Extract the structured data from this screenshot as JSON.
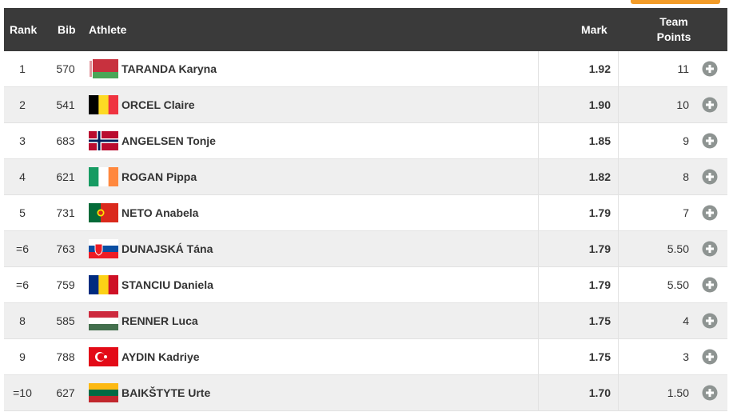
{
  "table": {
    "header": [
      "Rank",
      "Bib",
      "Athlete",
      "Mark",
      "Team Points"
    ],
    "rows": [
      [
        "1",
        "570",
        "TARANDA Karyna",
        "1.92",
        "11"
      ],
      [
        "2",
        "541",
        "ORCEL Claire",
        "1.90",
        "10"
      ],
      [
        "3",
        "683",
        "ANGELSEN Tonje",
        "1.85",
        "9"
      ],
      [
        "4",
        "621",
        "ROGAN Pippa",
        "1.82",
        "8"
      ],
      [
        "5",
        "731",
        "NETO Anabela",
        "1.79",
        "7"
      ],
      [
        "=6",
        "763",
        "DUNAJSKÁ Tána",
        "1.79",
        "5.50"
      ],
      [
        "=6",
        "759",
        "STANCIU Daniela",
        "1.79",
        "5.50"
      ],
      [
        "8",
        "585",
        "RENNER Luca",
        "1.75",
        "4"
      ],
      [
        "9",
        "788",
        "AYDIN Kadriye",
        "1.75",
        "3"
      ],
      [
        "=10",
        "627",
        "BAIKŠTYTE Urte",
        "1.70",
        "1.50"
      ]
    ]
  }
}
